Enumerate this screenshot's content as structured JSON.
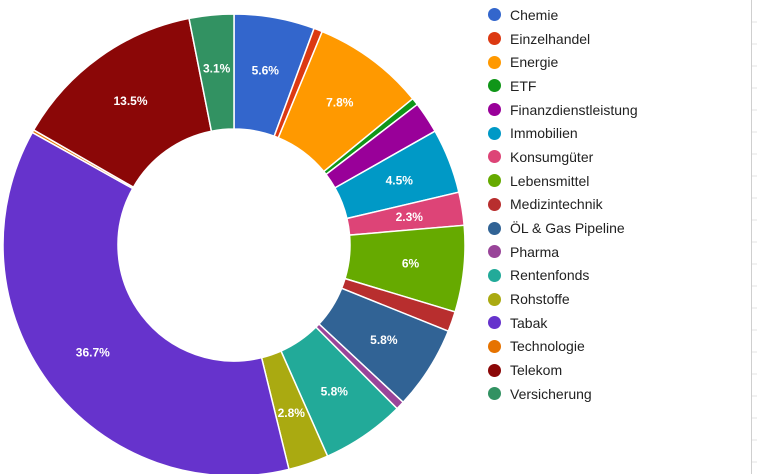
{
  "chart_data": {
    "type": "pie",
    "donut": true,
    "title": "",
    "legend_position": "right",
    "slices": [
      {
        "name": "Chemie",
        "value": 5.6,
        "label": "5.6%",
        "color": "#3366cc"
      },
      {
        "name": "Einzelhandel",
        "value": 0.6,
        "label": "",
        "color": "#dc3912"
      },
      {
        "name": "Energie",
        "value": 7.8,
        "label": "7.8%",
        "color": "#ff9900"
      },
      {
        "name": "ETF",
        "value": 0.5,
        "label": "",
        "color": "#109618"
      },
      {
        "name": "Finanzdienstleistung",
        "value": 2.2,
        "label": "",
        "color": "#990099"
      },
      {
        "name": "Immobilien",
        "value": 4.5,
        "label": "4.5%",
        "color": "#0099c6"
      },
      {
        "name": "Konsumgüter",
        "value": 2.3,
        "label": "2.3%",
        "color": "#dd4477"
      },
      {
        "name": "Lebensmittel",
        "value": 6.0,
        "label": "6%",
        "color": "#66aa00"
      },
      {
        "name": "Medizintechnik",
        "value": 1.4,
        "label": "",
        "color": "#b82e2e"
      },
      {
        "name": "ÖL & Gas Pipeline",
        "value": 5.8,
        "label": "5.8%",
        "color": "#316395"
      },
      {
        "name": "Pharma",
        "value": 0.6,
        "label": "",
        "color": "#994499"
      },
      {
        "name": "Rentenfonds",
        "value": 5.8,
        "label": "5.8%",
        "color": "#22aa99"
      },
      {
        "name": "Rohstoffe",
        "value": 2.8,
        "label": "2.8%",
        "color": "#aaaa11"
      },
      {
        "name": "Tabak",
        "value": 36.7,
        "label": "36.7%",
        "color": "#6633cc"
      },
      {
        "name": "Technologie",
        "value": 0.2,
        "label": "",
        "color": "#e67300"
      },
      {
        "name": "Telekom",
        "value": 13.5,
        "label": "13.5%",
        "color": "#8b0707"
      },
      {
        "name": "Versicherung",
        "value": 3.1,
        "label": "3.1%",
        "color": "#329262"
      }
    ]
  }
}
